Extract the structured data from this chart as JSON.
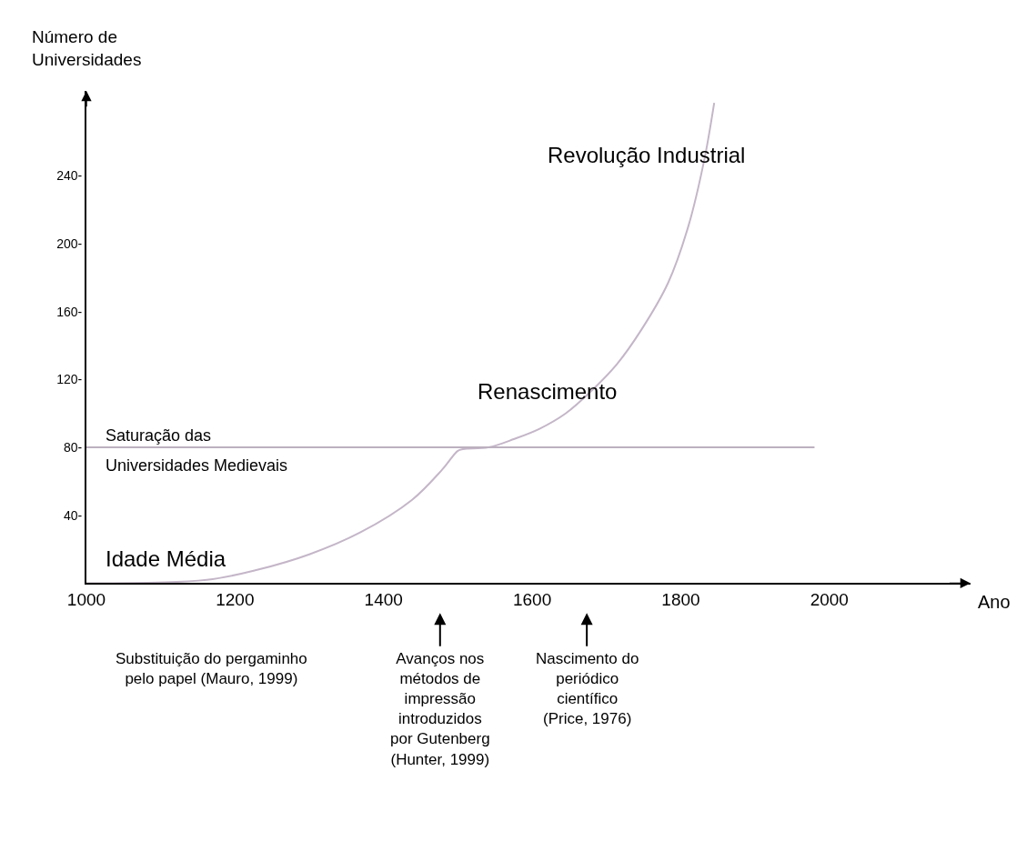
{
  "chart_data": {
    "type": "line",
    "xlabel": "Ano",
    "ylabel": "Número de Universidades",
    "xlim": [
      1000,
      2190
    ],
    "ylim": [
      0,
      290
    ],
    "xticks": [
      1000,
      1200,
      1400,
      1600,
      1800,
      2000
    ],
    "yticks": [
      {
        "value": 40,
        "label": "40-"
      },
      {
        "value": 80,
        "label": "80-"
      },
      {
        "value": 120,
        "label": "120-"
      },
      {
        "value": 160,
        "label": "160-"
      },
      {
        "value": 200,
        "label": "200-"
      },
      {
        "value": 240,
        "label": "240-"
      }
    ],
    "marker": "none",
    "line_style": "solid",
    "series": [
      {
        "color": "#c4b6c8",
        "x": [
          1000,
          1162,
          1231,
          1300,
          1369,
          1438,
          1479,
          1500,
          1507,
          1541,
          1576,
          1610,
          1645,
          1679,
          1714,
          1748,
          1783,
          1810,
          1831,
          1845
        ],
        "values": [
          0,
          2,
          8,
          17,
          30,
          49,
          67,
          78,
          79,
          80,
          85,
          91,
          100,
          113,
          129,
          150,
          177,
          210,
          248,
          283
        ]
      },
      {
        "color": "#bcb0bf",
        "x": [
          1000,
          1980
        ],
        "values": [
          80,
          80
        ]
      }
    ],
    "annotations": [
      "Idade Média",
      "Saturação das",
      "Universidades Medievais",
      "Renascimento",
      "Revolução Industrial",
      "Substituição do pergaminho\npelo papel (Mauro, 1999)",
      "Avanços nos\nmétodos de\nimpressão\nintroduzidos\npor Gutenberg\n(Hunter, 1999)",
      "Nascimento do\nperiódico\ncientífico\n(Price, 1976)"
    ]
  }
}
